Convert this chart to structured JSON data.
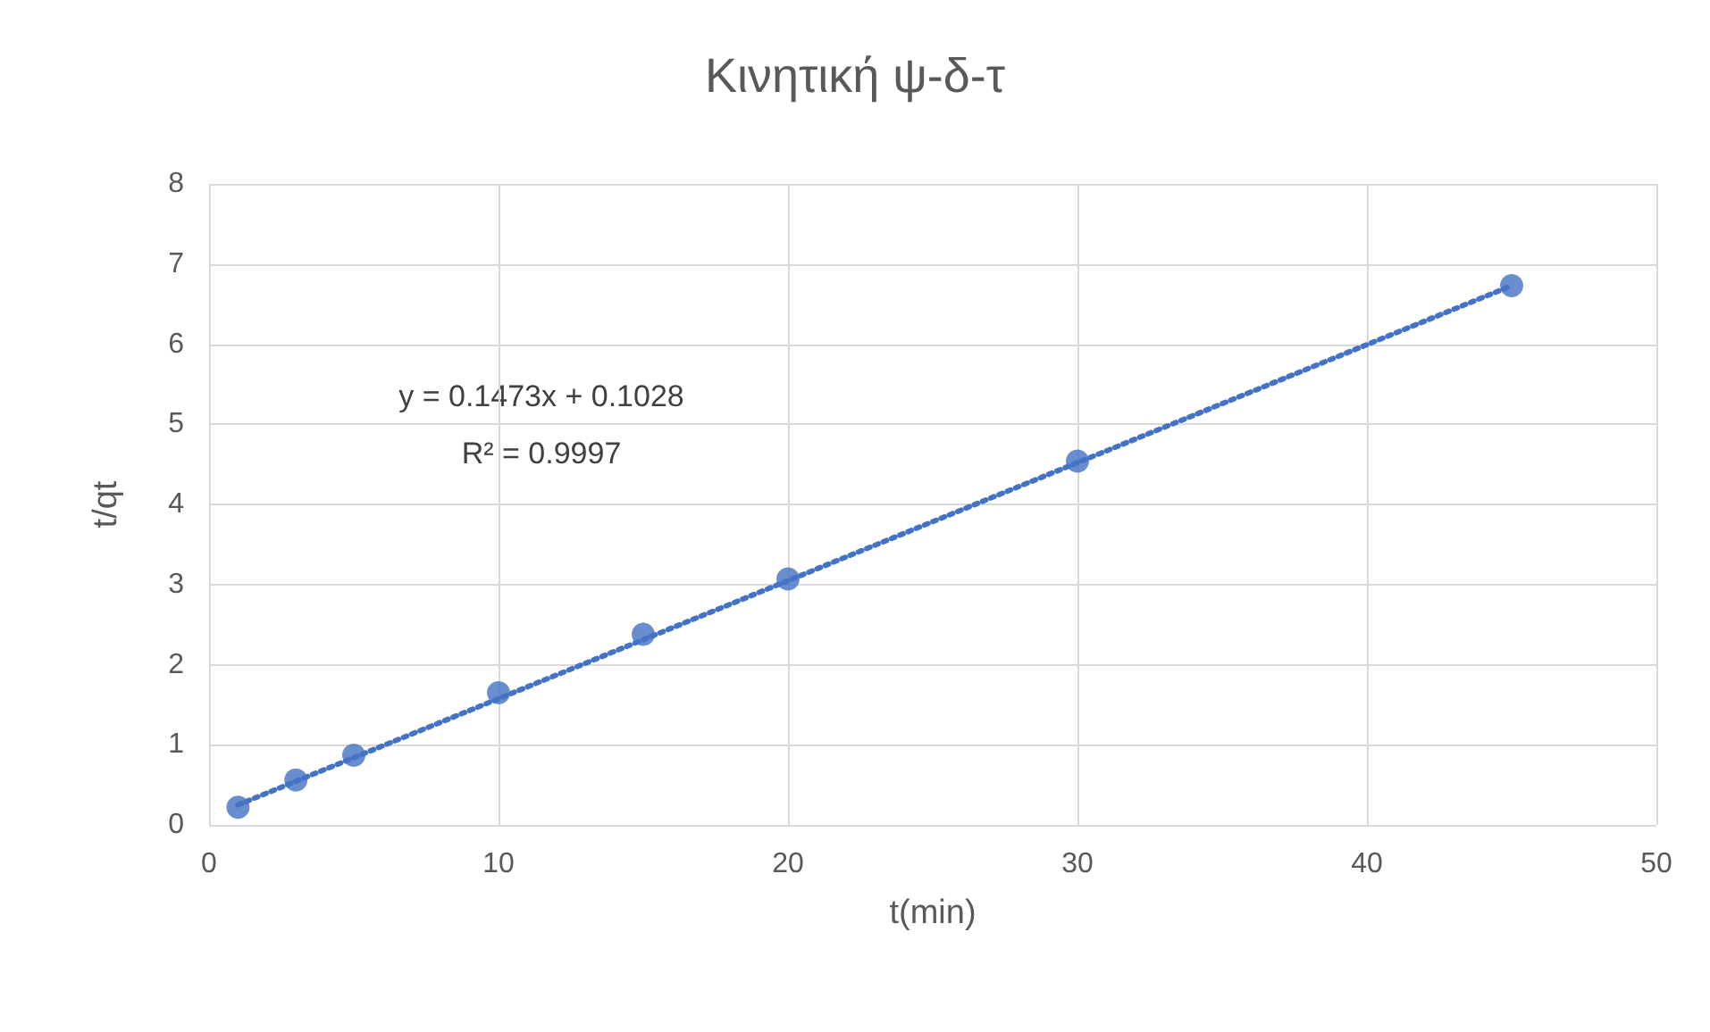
{
  "chart_data": {
    "type": "scatter",
    "title": "Κινητική ψ-δ-τ",
    "xlabel": "t(min)",
    "ylabel": "t/qt",
    "annotations": [
      "y = 0.1473x + 0.1028",
      "R² = 0.9997"
    ],
    "series": [
      {
        "color": "#4472c4",
        "marker": "circle",
        "x": [
          1,
          3,
          5,
          10,
          15,
          20,
          30,
          45
        ],
        "values": [
          0.22,
          0.56,
          0.87,
          1.65,
          2.38,
          3.07,
          4.54,
          6.73
        ]
      },
      {
        "type": "line",
        "color": "#4472c4",
        "marker": "none",
        "line_style": "dotted",
        "x": [
          1,
          45
        ],
        "values": [
          0.25,
          6.73
        ]
      }
    ],
    "xlim": [
      0,
      50
    ],
    "xticks": [
      0,
      10,
      20,
      30,
      40,
      50
    ],
    "ylim": [
      0,
      8
    ],
    "yticks": [
      0,
      1,
      2,
      3,
      4,
      5,
      6,
      7,
      8
    ],
    "grid": true
  }
}
